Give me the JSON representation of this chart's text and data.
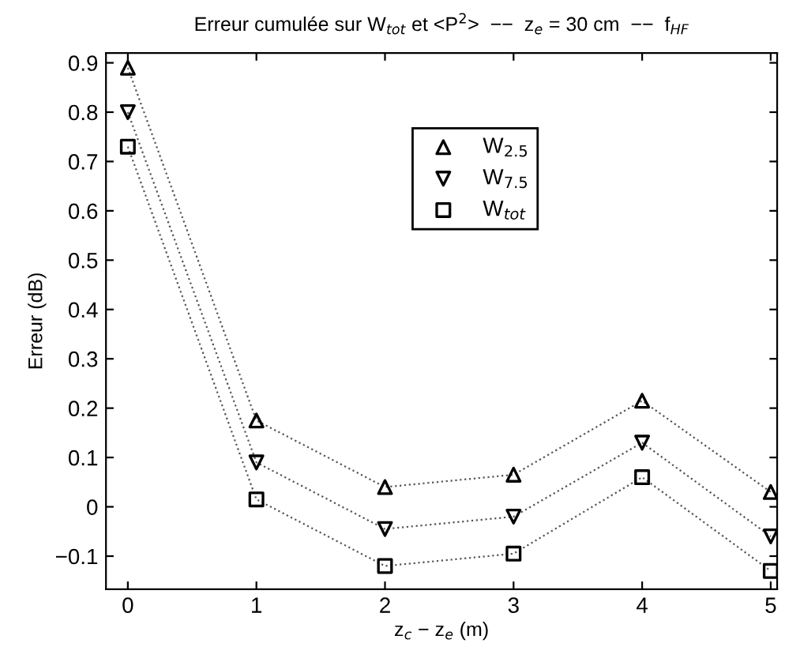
{
  "chart_data": {
    "type": "line",
    "title": "Erreur cumulée sur W$_{tot}$ et <P$^{2}$>  −−  z$_{e}$ = 30 cm  −−  f$_{HF}$",
    "xlabel": "z$_{c}$ − z$_{e}$ (m)",
    "ylabel": "Erreur (dB)",
    "x": [
      0,
      1,
      2,
      3,
      4,
      5
    ],
    "series": [
      {
        "name": "W$_{2.5}$",
        "color": "#000000",
        "marker": "triangle",
        "values": [
          0.89,
          0.175,
          0.04,
          0.065,
          0.215,
          0.03
        ]
      },
      {
        "name": "W$_{7.5}$",
        "color": "#000000",
        "marker": "triangle_down",
        "values": [
          0.8,
          0.09,
          -0.045,
          -0.02,
          0.13,
          -0.06
        ]
      },
      {
        "name": "W$_{tot}$",
        "color": "#000000",
        "marker": "square",
        "values": [
          0.73,
          0.015,
          -0.12,
          -0.095,
          0.06,
          -0.13
        ]
      }
    ],
    "line_style": "dotted",
    "xlim": [
      -0.17,
      5.05
    ],
    "ylim": [
      -0.167,
      0.92
    ],
    "xticks": [
      0,
      1,
      2,
      3,
      4,
      5
    ],
    "yticks": [
      {
        "value": -0.1,
        "label": "−0.1"
      },
      0,
      0.1,
      0.2,
      0.3,
      0.4,
      0.5,
      0.6,
      0.7,
      0.8,
      0.9
    ],
    "grid": false,
    "legend": "top center"
  }
}
